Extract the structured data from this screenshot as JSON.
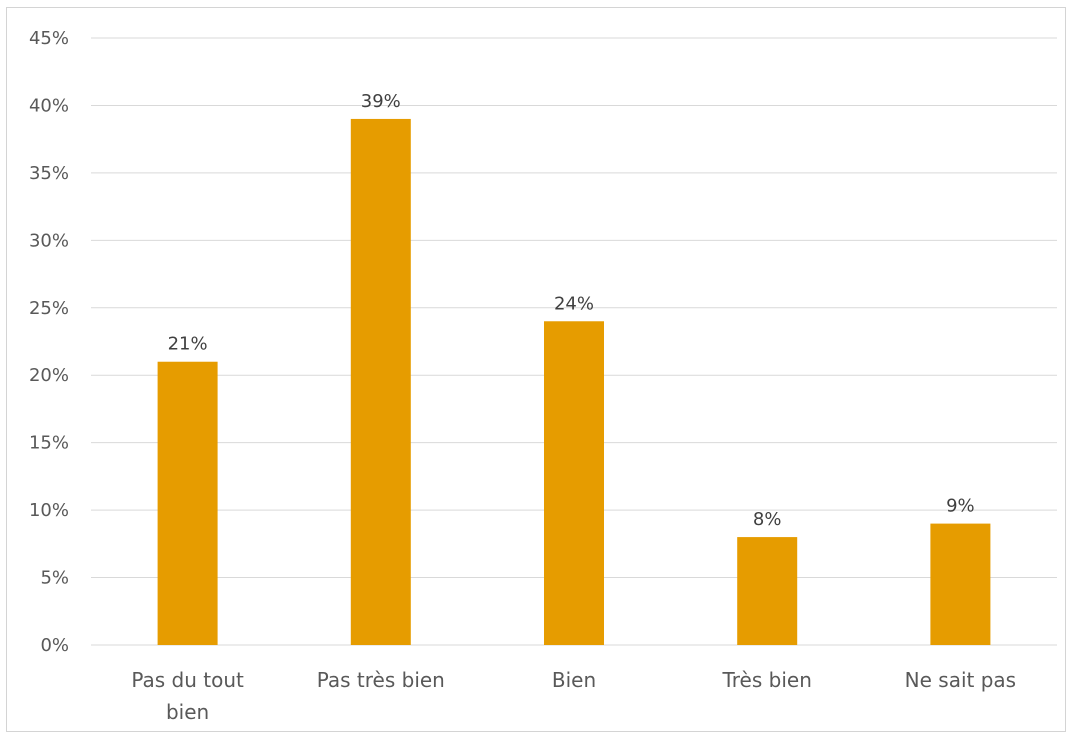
{
  "chart_data": {
    "type": "bar",
    "categories": [
      [
        "Pas du tout",
        "bien"
      ],
      [
        "Pas très bien"
      ],
      [
        "Bien"
      ],
      [
        "Très bien"
      ],
      [
        "Ne sait pas"
      ]
    ],
    "values": [
      21,
      39,
      24,
      8,
      9
    ],
    "data_labels": [
      "21%",
      "39%",
      "24%",
      "8%",
      "9%"
    ],
    "y_ticks": [
      0,
      5,
      10,
      15,
      20,
      25,
      30,
      35,
      40,
      45
    ],
    "y_tick_labels": [
      "0%",
      "5%",
      "10%",
      "15%",
      "20%",
      "25%",
      "30%",
      "35%",
      "40%",
      "45%"
    ],
    "ylim": [
      0,
      45
    ],
    "title": "",
    "xlabel": "",
    "ylabel": "",
    "grid": true,
    "legend": "none",
    "bar_color": "#E69C00",
    "grid_color": "#D9D9D9",
    "text_color": "#595959"
  }
}
